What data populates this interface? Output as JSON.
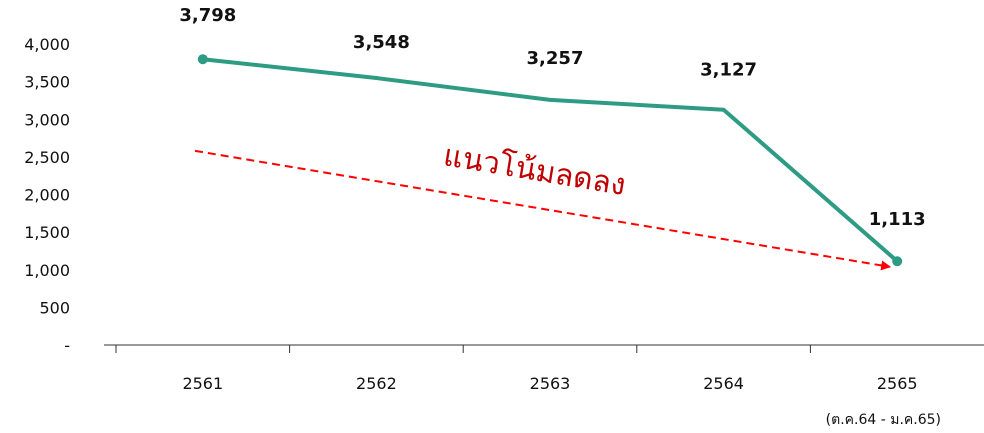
{
  "chart_data": {
    "type": "line",
    "categories": [
      "2561",
      "2562",
      "2563",
      "2564",
      "2565"
    ],
    "series": [
      {
        "values": [
          3798,
          3548,
          3257,
          3127,
          1113
        ],
        "color": "#2e9b84"
      }
    ],
    "data_labels": [
      "3,798",
      "3,548",
      "3,257",
      "3,127",
      "1,113"
    ],
    "y_ticks": [
      {
        "value": 0,
        "label": "-"
      },
      {
        "value": 500,
        "label": "500"
      },
      {
        "value": 1000,
        "label": "1,000"
      },
      {
        "value": 1500,
        "label": "1,500"
      },
      {
        "value": 2000,
        "label": "2,000"
      },
      {
        "value": 2500,
        "label": "2,500"
      },
      {
        "value": 3000,
        "label": "3,000"
      },
      {
        "value": 3500,
        "label": "3,500"
      },
      {
        "value": 4000,
        "label": "4,000"
      }
    ],
    "ylim": [
      0,
      4000
    ],
    "grid": false,
    "annotations": {
      "trend_text": "แนวโน้มลดลง",
      "trend_color": "#c00000",
      "arrow_color": "#ff0000",
      "trend_start_value": 2580,
      "trend_end_value": 1040,
      "note": "(ต.ค.64 - ม.ค.65)"
    }
  }
}
